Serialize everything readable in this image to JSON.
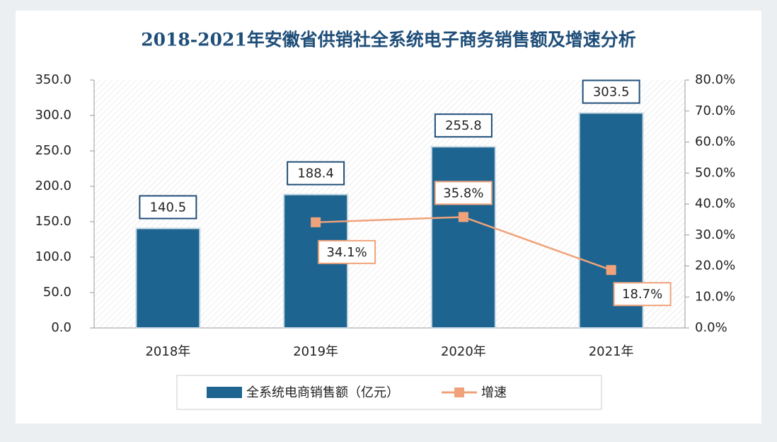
{
  "chart_data": {
    "type": "bar",
    "title": "2018-2021年安徽省供销社全系统电子商务销售额及增速分析",
    "categories": [
      "2018年",
      "2019年",
      "2020年",
      "2021年"
    ],
    "series": [
      {
        "name": "全系统电商销售额（亿元）",
        "type": "bar",
        "color": "#1d6590",
        "values": [
          140.5,
          188.4,
          255.8,
          303.5
        ]
      },
      {
        "name": "增速",
        "type": "line",
        "axis": "y2",
        "color": "#f0a27a",
        "values": [
          null,
          34.1,
          35.8,
          18.7
        ],
        "value_labels": [
          null,
          "34.1%",
          "35.8%",
          "18.7%"
        ]
      }
    ],
    "ylim": [
      0,
      350
    ],
    "yticks": [
      {
        "value": 0,
        "label": "0.0"
      },
      {
        "value": 50,
        "label": "50.0"
      },
      {
        "value": 100,
        "label": "100.0"
      },
      {
        "value": 150,
        "label": "150.0"
      },
      {
        "value": 200,
        "label": "200.0"
      },
      {
        "value": 250,
        "label": "250.0"
      },
      {
        "value": 300,
        "label": "300.0"
      },
      {
        "value": 350,
        "label": "350.0"
      }
    ],
    "y2lim": [
      0,
      80
    ],
    "y2ticks": [
      {
        "value": 0,
        "label": "0.0%"
      },
      {
        "value": 10,
        "label": "10.0%"
      },
      {
        "value": 20,
        "label": "20.0%"
      },
      {
        "value": 30,
        "label": "30.0%"
      },
      {
        "value": 40,
        "label": "40.0%"
      },
      {
        "value": 50,
        "label": "50.0%"
      },
      {
        "value": 60,
        "label": "60.0%"
      },
      {
        "value": 70,
        "label": "70.0%"
      },
      {
        "value": 80,
        "label": "80.0%"
      }
    ],
    "legend": "bottom"
  }
}
